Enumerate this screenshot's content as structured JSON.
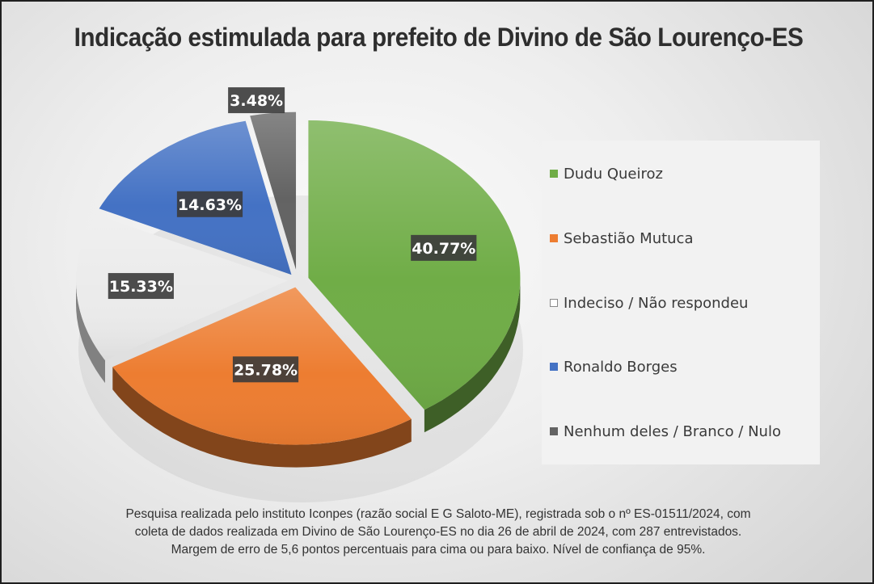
{
  "chart_data": {
    "type": "pie",
    "title": "Indicação estimulada para prefeito de Divino de São Lourenço-ES",
    "slices": [
      {
        "label": "Dudu Queiroz",
        "value": 40.77,
        "value_label": "40.77%",
        "color": "#70ad47"
      },
      {
        "label": "Sebastião Mutuca",
        "value": 25.78,
        "value_label": "25.78%",
        "color": "#ed7d31"
      },
      {
        "label": "Indeciso / Não respondeu",
        "value": 15.33,
        "value_label": "15.33%",
        "color": "#ebebeb"
      },
      {
        "label": "Ronaldo Borges",
        "value": 14.63,
        "value_label": "14.63%",
        "color": "#4472c4"
      },
      {
        "label": "Nenhum deles / Branco / Nulo",
        "value": 3.48,
        "value_label": "3.48%",
        "color": "#636363"
      }
    ],
    "legend_position": "right",
    "style": "3D pie, exploded slices"
  },
  "footnote": {
    "line1": "Pesquisa realizada pelo instituto Iconpes (razão social E G Saloto-ME), registrada sob o nº ES-01511/2024, com",
    "line2": "coleta de dados realizada em Divino de São Lourenço-ES no dia 26 de abril de 2024, com 287 entrevistados.",
    "line3": "Margem de erro de 5,6 pontos percentuais para cima ou para baixo. Nível de confiança de 95%."
  }
}
